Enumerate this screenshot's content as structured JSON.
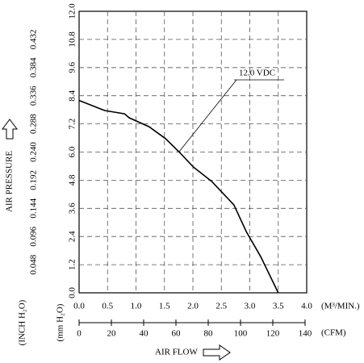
{
  "chart_data": {
    "type": "line",
    "ylabel": "AIR PRESSURE",
    "y_unit": "(mm H₂O)",
    "y2_unit": "(INCH H₂O)",
    "xlabel": "AIR FLOW",
    "x_unit": "(M³/MIN.)",
    "x2_unit": "(CFM)",
    "annotation": "12.0 VDC",
    "grid": true,
    "x": [
      0,
      0.45,
      0.8,
      0.88,
      1.23,
      1.52,
      1.76,
      2.01,
      2.33,
      2.72,
      2.94,
      3.19,
      3.5
    ],
    "series": [
      {
        "name": null,
        "color": "#000000",
        "values": [
          8.2,
          7.77,
          7.63,
          7.46,
          7.08,
          6.57,
          6.0,
          5.36,
          4.75,
          3.75,
          2.6,
          1.55,
          0
        ]
      }
    ],
    "xlim": [
      0,
      4
    ],
    "xticks": [
      {
        "value": 0,
        "label": "0.0"
      },
      0.5,
      {
        "value": 1,
        "label": "1.0"
      },
      1.5,
      {
        "value": 2,
        "label": "2.0"
      },
      2.5,
      {
        "value": 3,
        "label": "3.0"
      },
      3.5,
      {
        "value": 4,
        "label": "4.0"
      }
    ],
    "x2lim": [
      0,
      141
    ],
    "x2ticks": [
      0,
      20,
      40,
      60,
      80,
      100,
      120,
      140
    ],
    "ylim": [
      0,
      12
    ],
    "yticks": [
      {
        "value": 0,
        "label": "0.0"
      },
      1.2,
      2.4,
      3.6,
      4.8,
      {
        "value": 6,
        "label": "6.0"
      },
      7.2,
      8.4,
      9.6,
      10.8,
      {
        "value": 12,
        "label": "12.0"
      }
    ],
    "y2lim": [
      0,
      0.48
    ],
    "y2ticks": [
      0.048,
      0.096,
      0.144,
      0.192,
      {
        "value": 0.24,
        "label": "0.240"
      },
      0.288,
      0.336,
      0.384,
      0.432
    ]
  }
}
